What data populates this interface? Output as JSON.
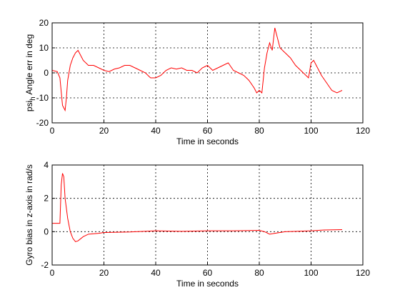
{
  "chart_data": [
    {
      "type": "line",
      "xlabel": "Time in seconds",
      "ylabel": {
        "text": "psi",
        "subscript": "h",
        "rest": " Angle err in deg"
      },
      "xlim": [
        0,
        120
      ],
      "xticks": [
        0,
        20,
        40,
        60,
        80,
        100,
        120
      ],
      "ylim": [
        -20,
        20
      ],
      "yticks": [
        -20,
        -10,
        0,
        10,
        20
      ],
      "grid": true,
      "series": [
        {
          "color": "#ff0000",
          "x": [
            0,
            2,
            3,
            4,
            5,
            5.5,
            6,
            7,
            8,
            9,
            10,
            11,
            12,
            14,
            16,
            18,
            20,
            22,
            24,
            26,
            28,
            30,
            32,
            34,
            36,
            38,
            40,
            42,
            44,
            46,
            48,
            50,
            52,
            54,
            56,
            58,
            60,
            62,
            64,
            66,
            68,
            70,
            72,
            74,
            76,
            78,
            79,
            80,
            81,
            82,
            83,
            84,
            85,
            86,
            87,
            88,
            90,
            92,
            94,
            96,
            98,
            99,
            100,
            101,
            102,
            104,
            106,
            108,
            110,
            112
          ],
          "values": [
            1,
            0.5,
            -2,
            -13,
            -15,
            -10,
            -3,
            3,
            6,
            8,
            9,
            7,
            5,
            3,
            3,
            2,
            1,
            0.5,
            1.5,
            2,
            3,
            3,
            2,
            1,
            0,
            -2,
            -2,
            -1,
            1,
            2,
            1.5,
            2,
            1,
            1,
            0,
            2,
            3,
            1,
            2,
            3,
            4,
            1,
            0,
            -1,
            -3,
            -6,
            -8,
            -7,
            -8,
            2,
            8,
            12,
            9,
            18,
            14,
            10,
            8,
            6,
            3,
            1,
            -1,
            -2,
            4,
            5,
            3,
            -1,
            -4,
            -7,
            -8,
            -7
          ]
        }
      ]
    },
    {
      "type": "line",
      "xlabel": "Time in seconds",
      "ylabel": {
        "text": "Gyro bias in z-axis in rad/s"
      },
      "xlim": [
        0,
        120
      ],
      "xticks": [
        0,
        20,
        40,
        60,
        80,
        100,
        120
      ],
      "ylim": [
        -2,
        4
      ],
      "yticks": [
        -2,
        0,
        2,
        4
      ],
      "grid": true,
      "series": [
        {
          "color": "#ff0000",
          "x": [
            0,
            3,
            3.5,
            4,
            4.5,
            5,
            6,
            7,
            8,
            9,
            10,
            12,
            14,
            18,
            20,
            30,
            40,
            50,
            60,
            70,
            80,
            82,
            84,
            86,
            90,
            100,
            105,
            112
          ],
          "values": [
            0.5,
            0.5,
            2.8,
            3.5,
            3.3,
            2,
            0.8,
            0,
            -0.4,
            -0.6,
            -0.55,
            -0.3,
            -0.15,
            -0.1,
            -0.05,
            -0.02,
            0.05,
            0.02,
            0.05,
            0.05,
            0.08,
            0,
            -0.15,
            -0.1,
            0,
            0.05,
            0.1,
            0.12
          ]
        }
      ]
    }
  ]
}
